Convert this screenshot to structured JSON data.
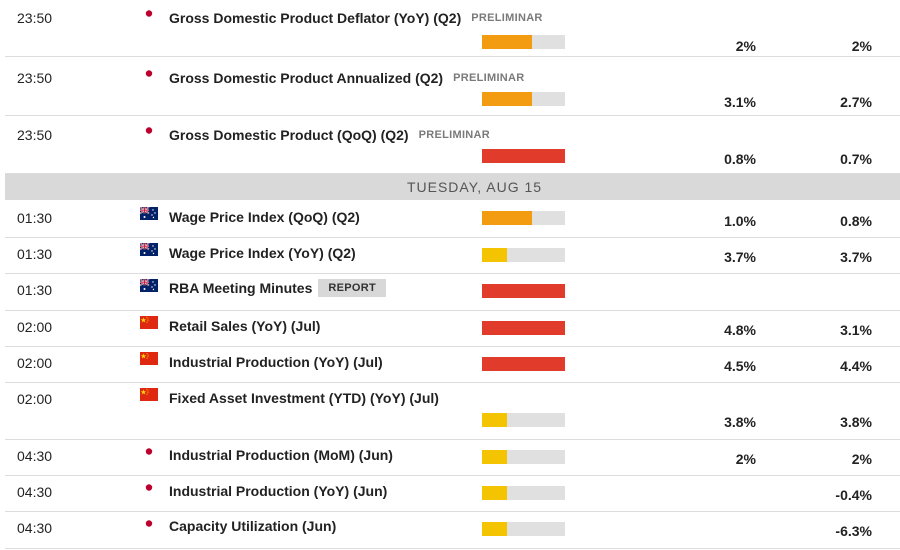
{
  "colors": {
    "high": "#e03b2b",
    "medium": "#f39c12",
    "low": "#f5c400",
    "track": "#e0e0e0",
    "date_bar": "#d9d9d9"
  },
  "date_header": "TUESDAY, AUG 15",
  "rows_before": [
    {
      "time": "23:50",
      "flag": "japan-flag-icon",
      "name": "Gross Domestic Product Deflator (YoY) (Q2)",
      "tag": "PRELIMINAR",
      "impact": "medium",
      "impact_level": 0.6,
      "actual": "2%",
      "forecast": "2%"
    },
    {
      "time": "23:50",
      "flag": "japan-flag-icon",
      "name": "Gross Domestic Product Annualized (Q2)",
      "tag": "PRELIMINAR",
      "impact": "medium",
      "impact_level": 0.6,
      "actual": "3.1%",
      "forecast": "2.7%"
    },
    {
      "time": "23:50",
      "flag": "japan-flag-icon",
      "name": "Gross Domestic Product (QoQ) (Q2)",
      "tag": "PRELIMINAR",
      "impact": "high",
      "impact_level": 1.0,
      "actual": "0.8%",
      "forecast": "0.7%"
    }
  ],
  "rows_after": [
    {
      "time": "01:30",
      "flag": "australia-flag-icon",
      "name": "Wage Price Index (QoQ) (Q2)",
      "tag": "",
      "impact": "medium",
      "impact_level": 0.6,
      "actual": "1.0%",
      "forecast": "0.8%"
    },
    {
      "time": "01:30",
      "flag": "australia-flag-icon",
      "name": "Wage Price Index (YoY) (Q2)",
      "tag": "",
      "impact": "low",
      "impact_level": 0.3,
      "actual": "3.7%",
      "forecast": "3.7%"
    },
    {
      "time": "01:30",
      "flag": "australia-flag-icon",
      "name": "RBA Meeting Minutes",
      "tag": "",
      "button": "REPORT",
      "impact": "high",
      "impact_level": 1.0,
      "actual": "",
      "forecast": ""
    },
    {
      "time": "02:00",
      "flag": "china-flag-icon",
      "name": "Retail Sales (YoY) (Jul)",
      "tag": "",
      "impact": "high",
      "impact_level": 1.0,
      "actual": "4.8%",
      "forecast": "3.1%"
    },
    {
      "time": "02:00",
      "flag": "china-flag-icon",
      "name": "Industrial Production (YoY) (Jul)",
      "tag": "",
      "impact": "high",
      "impact_level": 1.0,
      "actual": "4.5%",
      "forecast": "4.4%"
    },
    {
      "time": "02:00",
      "flag": "china-flag-icon",
      "name": "Fixed Asset Investment (YTD) (YoY) (Jul)",
      "tag": "",
      "impact": "low",
      "impact_level": 0.3,
      "actual": "3.8%",
      "forecast": "3.8%"
    },
    {
      "time": "04:30",
      "flag": "japan-flag-icon",
      "name": "Industrial Production (MoM) (Jun)",
      "tag": "",
      "impact": "low",
      "impact_level": 0.3,
      "actual": "2%",
      "forecast": "2%"
    },
    {
      "time": "04:30",
      "flag": "japan-flag-icon",
      "name": "Industrial Production (YoY) (Jun)",
      "tag": "",
      "impact": "low",
      "impact_level": 0.3,
      "actual": "",
      "forecast": "-0.4%"
    },
    {
      "time": "04:30",
      "flag": "japan-flag-icon",
      "name": "Capacity Utilization (Jun)",
      "tag": "",
      "impact": "low",
      "impact_level": 0.3,
      "actual": "",
      "forecast": "-6.3%"
    }
  ]
}
